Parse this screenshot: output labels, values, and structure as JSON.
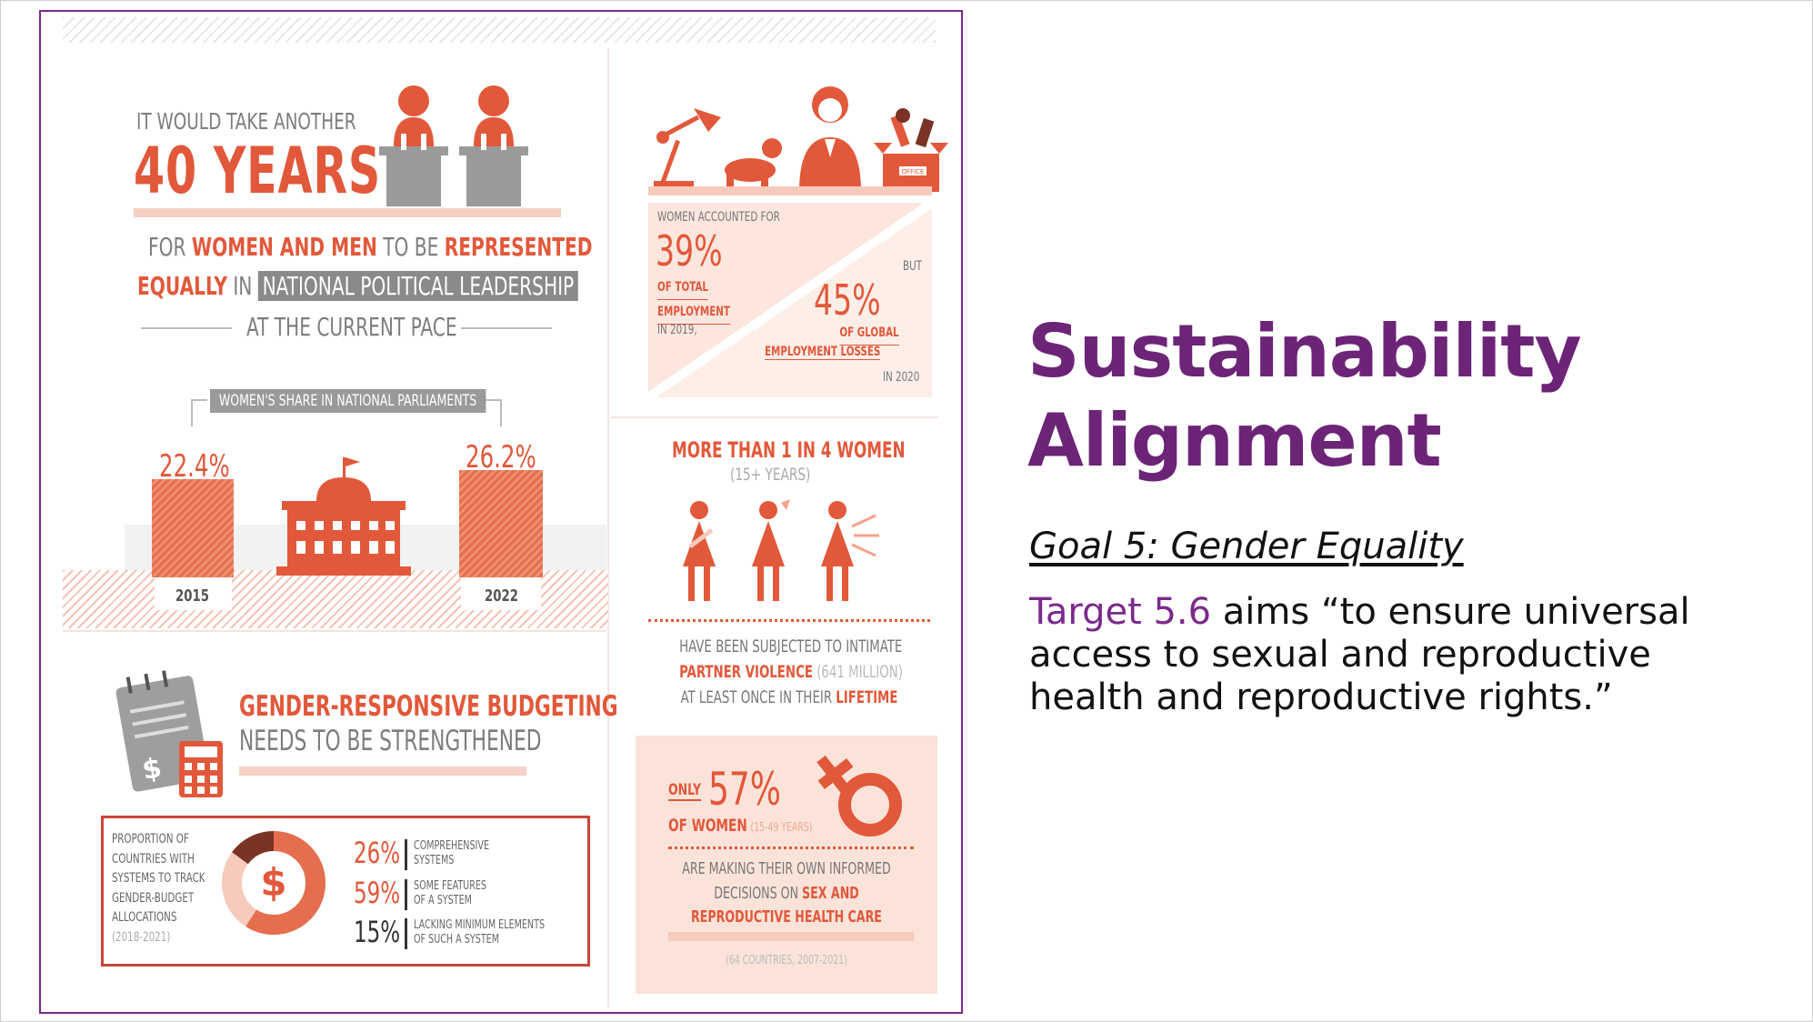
{
  "slide": {
    "title_line1": "Sustainability",
    "title_line2": "Alignment",
    "goal": "Goal 5: Gender Equality",
    "target_label": "Target 5.6",
    "target_text": " aims “to ensure universal access to sexual and reproductive health and reproductive rights.”"
  },
  "colors": {
    "accent_purple": "#6c2477",
    "salmon": "#e2583a",
    "peach": "#f9dcd3"
  },
  "infographic": {
    "leadership": {
      "pre": "IT WOULD TAKE ANOTHER",
      "big": "40 YEARS",
      "l1_a": "FOR ",
      "l1_b": "WOMEN AND MEN",
      "l1_c": " TO BE ",
      "l1_d": "REPRESENTED",
      "l2_a": "EQUALLY",
      "l2_b": " IN ",
      "l2_c": "NATIONAL POLITICAL LEADERSHIP",
      "l3": "AT THE CURRENT PACE"
    },
    "parliament": {
      "label": "WOMEN'S SHARE IN NATIONAL PARLIAMENTS",
      "v1": "22.4%",
      "y1": "2015",
      "v2": "26.2%",
      "y2": "2022"
    },
    "budgeting": {
      "title1": "GENDER-RESPONSIVE BUDGETING",
      "title2": "NEEDS TO BE STRENGTHENED",
      "desc_lines": [
        "PROPORTION OF",
        "COUNTRIES WITH",
        "SYSTEMS TO TRACK",
        "GENDER-BUDGET",
        "ALLOCATIONS"
      ],
      "years": "(2018-2021)",
      "stats": [
        {
          "pct": "26%",
          "l1": "COMPREHENSIVE",
          "l2": "SYSTEMS"
        },
        {
          "pct": "59%",
          "l1": "SOME FEATURES",
          "l2": "OF A SYSTEM"
        },
        {
          "pct": "15%",
          "l1": "LACKING MINIMUM ELEMENTS",
          "l2": "OF SUCH A SYSTEM"
        }
      ],
      "dollar": "$",
      "calc_dollar": "$"
    },
    "employment": {
      "l1": "WOMEN ACCOUNTED FOR",
      "p1": "39%",
      "l2": "OF TOTAL",
      "l3": "EMPLOYMENT",
      "l4": "IN 2019,",
      "but": "BUT",
      "p2": "45%",
      "l5": "OF GLOBAL",
      "l6": "EMPLOYMENT LOSSES",
      "l7": "IN 2020",
      "box_label": "OFFICE"
    },
    "violence": {
      "title": "MORE THAN 1 IN 4 WOMEN",
      "sub": "(15+ YEARS)",
      "l1": "HAVE BEEN SUBJECTED TO INTIMATE",
      "l2a": "PARTNER VIOLENCE",
      "l2b": " (641 MILLION)",
      "l3a": "AT LEAST ONCE IN THEIR ",
      "l3b": "LIFETIME"
    },
    "health": {
      "only": "ONLY",
      "pct": "57%",
      "of_women": "OF WOMEN",
      "age": "(15-49 YEARS)",
      "l1": "ARE MAKING THEIR OWN INFORMED",
      "l2a": "DECISIONS ON ",
      "l2b": "SEX AND",
      "l3": "REPRODUCTIVE HEALTH CARE",
      "source": "(64 COUNTRIES, 2007-2021)"
    }
  }
}
